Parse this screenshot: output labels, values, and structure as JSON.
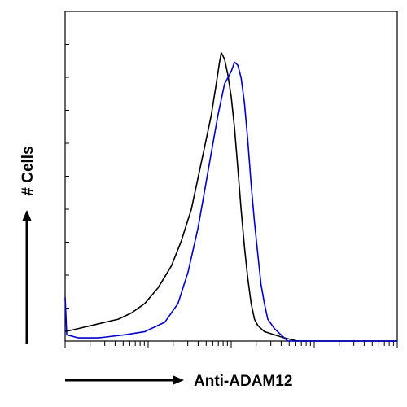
{
  "chart_data": {
    "type": "line",
    "title": "",
    "xlabel": "Anti-ADAM12",
    "ylabel": "# Cells",
    "x_scale": "log",
    "tick_labels_shown": false,
    "grid": false,
    "legend": "none",
    "series": [
      {
        "color": "#000000",
        "points": [
          [
            0,
            0.03
          ],
          [
            4,
            0.04
          ],
          [
            8,
            0.05
          ],
          [
            12,
            0.06
          ],
          [
            16,
            0.07
          ],
          [
            20,
            0.09
          ],
          [
            24,
            0.12
          ],
          [
            28,
            0.17
          ],
          [
            32,
            0.24
          ],
          [
            35,
            0.32
          ],
          [
            38,
            0.42
          ],
          [
            40,
            0.52
          ],
          [
            42,
            0.62
          ],
          [
            44,
            0.72
          ],
          [
            45.5,
            0.82
          ],
          [
            46.5,
            0.89
          ],
          [
            47,
            0.92
          ],
          [
            48,
            0.9
          ],
          [
            49,
            0.85
          ],
          [
            50,
            0.78
          ],
          [
            51,
            0.68
          ],
          [
            52,
            0.55
          ],
          [
            53,
            0.42
          ],
          [
            54,
            0.3
          ],
          [
            55,
            0.2
          ],
          [
            56,
            0.12
          ],
          [
            57,
            0.07
          ],
          [
            58,
            0.05
          ],
          [
            60,
            0.03
          ],
          [
            63,
            0.02
          ],
          [
            66,
            0.01
          ],
          [
            70,
            0.0
          ],
          [
            100,
            0.0
          ]
        ]
      },
      {
        "color": "#0000cc",
        "points": [
          [
            0,
            0.14
          ],
          [
            0.5,
            0.02
          ],
          [
            4,
            0.01
          ],
          [
            10,
            0.01
          ],
          [
            18,
            0.02
          ],
          [
            24,
            0.03
          ],
          [
            30,
            0.06
          ],
          [
            34,
            0.12
          ],
          [
            37,
            0.22
          ],
          [
            40,
            0.36
          ],
          [
            42,
            0.48
          ],
          [
            44,
            0.6
          ],
          [
            46,
            0.72
          ],
          [
            48,
            0.82
          ],
          [
            50,
            0.86
          ],
          [
            51,
            0.89
          ],
          [
            52,
            0.88
          ],
          [
            53,
            0.84
          ],
          [
            54,
            0.76
          ],
          [
            55,
            0.64
          ],
          [
            56,
            0.5
          ],
          [
            57,
            0.38
          ],
          [
            58,
            0.28
          ],
          [
            59,
            0.18
          ],
          [
            60,
            0.12
          ],
          [
            61,
            0.07
          ],
          [
            63,
            0.04
          ],
          [
            65,
            0.02
          ],
          [
            67,
            0.0
          ],
          [
            100,
            0.0
          ]
        ]
      }
    ],
    "xlim": [
      0,
      100
    ],
    "ylim": [
      0,
      1
    ]
  }
}
